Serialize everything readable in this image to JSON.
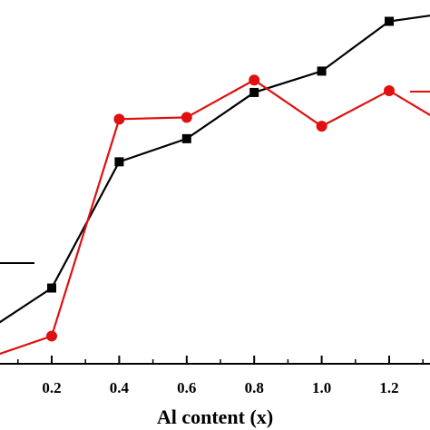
{
  "chart_data": {
    "type": "line",
    "title": "",
    "xlabel": "Al content (x)",
    "ylabel": "",
    "xlim": [
      -0.05,
      1.35
    ],
    "ylim": [
      0,
      1
    ],
    "x_ticks": [
      0.2,
      0.4,
      0.6,
      0.8,
      1.0,
      1.2
    ],
    "x_tick_labels": [
      "0.2",
      "0.4",
      "0.6",
      "0.8",
      "1.0",
      "1.2"
    ],
    "grid": false,
    "series": [
      {
        "color": "#000000",
        "marker": "square",
        "x": [
          0.0,
          0.2,
          0.4,
          0.6,
          0.8,
          1.0,
          1.2,
          1.35
        ],
        "y": [
          0.065,
          0.19,
          0.545,
          0.61,
          0.74,
          0.8,
          0.94,
          0.96
        ]
      },
      {
        "color": "#e01010",
        "marker": "circle",
        "x": [
          0.0,
          0.2,
          0.4,
          0.6,
          0.8,
          1.0,
          1.2,
          1.35
        ],
        "y": [
          -0.01,
          0.055,
          0.665,
          0.67,
          0.775,
          0.645,
          0.745,
          0.66
        ]
      }
    ]
  }
}
